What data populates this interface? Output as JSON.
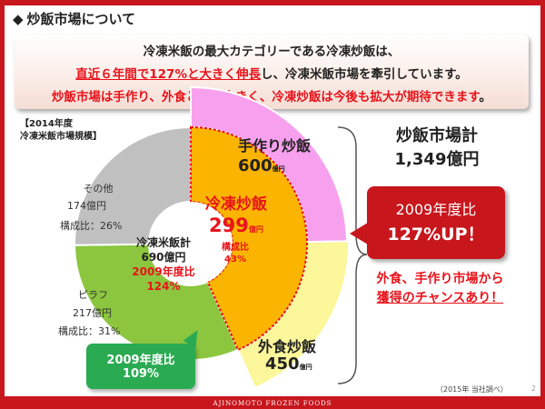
{
  "slide": {
    "title": "炒飯市場について",
    "bullet_glyph": "◆",
    "page_number": "2",
    "footer_brand": "AJINOMOTO FROZEN FOODS",
    "source_note": "（2015年 当社調べ）"
  },
  "summary": {
    "line1": "冷凍米飯の最大カテゴリーである冷凍炒飯は、",
    "line2_highlight": "直近６年間で127%と大きく伸長",
    "line2_rest": "し、冷凍米飯市場を牽引しています。",
    "line3_red": "炒飯市場は手作り、外食ともに大きく、冷凍炒飯は今後も拡大が期待できます",
    "line3_end": "。"
  },
  "scope_label": {
    "line1": "【2014年度",
    "line2": "冷凍米飯市場規模】"
  },
  "market": {
    "frozen_rice_total": {
      "title": "冷凍米飯計",
      "value": "690億円",
      "growth_label": "2009年度比",
      "growth_value": "124%"
    },
    "other": {
      "name": "その他",
      "amount": "174億円",
      "ratio": "構成比：26%"
    },
    "pilaf": {
      "name": "ピラフ",
      "amount": "217億円",
      "ratio": "構成比：31%",
      "growth_label": "2009年度比",
      "growth_value": "109%"
    },
    "frozen_fried_rice": {
      "name": "冷凍炒飯",
      "amount": "299",
      "unit": "億円",
      "ratio_label": "構成比",
      "ratio_value": "43%"
    },
    "homemade_fried_rice": {
      "name": "手作り炒飯",
      "amount": "600",
      "unit": "億円"
    },
    "restaurant_fried_rice": {
      "name": "外食炒飯",
      "amount": "450",
      "unit": "億円"
    },
    "fried_rice_total": {
      "title": "炒飯市場計",
      "value": "1,349億円"
    },
    "growth_callout": {
      "label": "2009年度比",
      "value": "127%UP！"
    },
    "opportunity": {
      "line1": "外食、手作り市場から",
      "line2": "獲得のチャンスあり！"
    }
  },
  "chart_data": {
    "type": "pie",
    "title": "",
    "unit": "億円",
    "inner_ring": {
      "name": "冷凍米飯計",
      "total": 690,
      "slices": [
        {
          "label": "冷凍炒飯",
          "value": 299,
          "share": 43,
          "color": "#fbb400"
        },
        {
          "label": "ピラフ",
          "value": 217,
          "share": 31,
          "color": "#8cc63f"
        },
        {
          "label": "その他",
          "value": 174,
          "share": 26,
          "color": "#c0c0c0"
        }
      ]
    },
    "outer_ring": {
      "name": "炒飯市場計",
      "total": 1349,
      "slices": [
        {
          "label": "手作り炒飯",
          "value": 600,
          "color": "#f7a1ee"
        },
        {
          "label": "外食炒飯",
          "value": 450,
          "color": "#fbf79a"
        }
      ]
    }
  },
  "colors": {
    "brand_red": "#c8161d",
    "text_red": "#e8131b",
    "frozen_fried_rice": "#fbb400",
    "homemade": "#f7a1ee",
    "restaurant": "#fbf79a",
    "pilaf": "#8cc63f",
    "other": "#c0c0c0",
    "callout_green": "#2aab52"
  }
}
